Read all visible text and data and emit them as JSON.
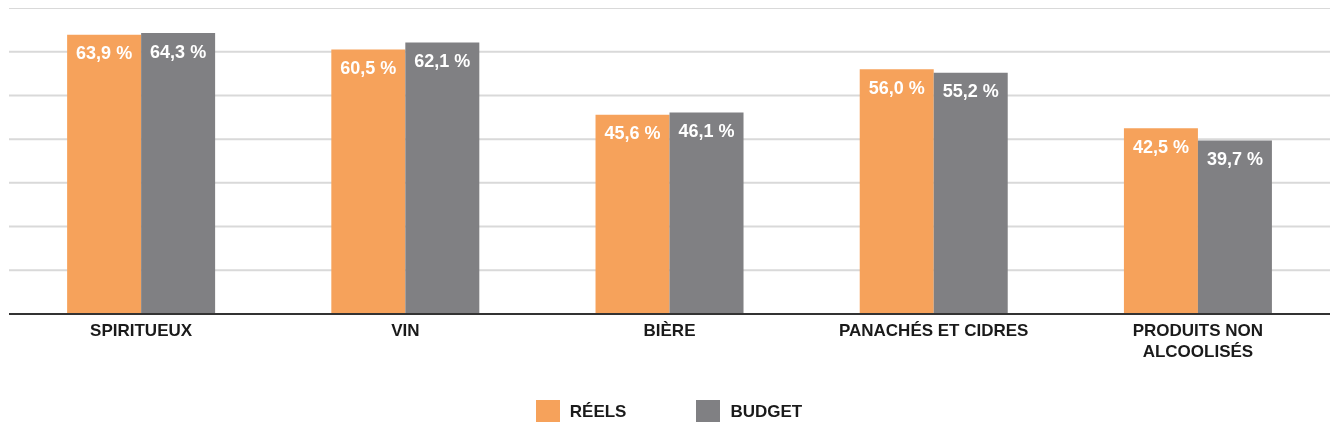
{
  "chart_data": {
    "type": "bar",
    "categories": [
      "SPIRITUEUX",
      "VIN",
      "BIÈRE",
      "PANACHÉS ET CIDRES",
      "PRODUITS NON ALCOOLISÉS"
    ],
    "series": [
      {
        "name": "RÉELS",
        "color": "#f6a25b",
        "values": [
          63.9,
          60.5,
          45.6,
          56.0,
          42.5
        ],
        "value_labels": [
          "63,9 %",
          "60,5 %",
          "45,6 %",
          "56,0 %",
          "42,5 %"
        ]
      },
      {
        "name": "BUDGET",
        "color": "#808083",
        "values": [
          64.3,
          62.1,
          46.1,
          55.2,
          39.7
        ],
        "value_labels": [
          "64,3 %",
          "62,1 %",
          "46,1 %",
          "55,2 %",
          "39,7 %"
        ]
      }
    ],
    "tick_labels": "x",
    "grid": "y",
    "legend": "bottom"
  }
}
